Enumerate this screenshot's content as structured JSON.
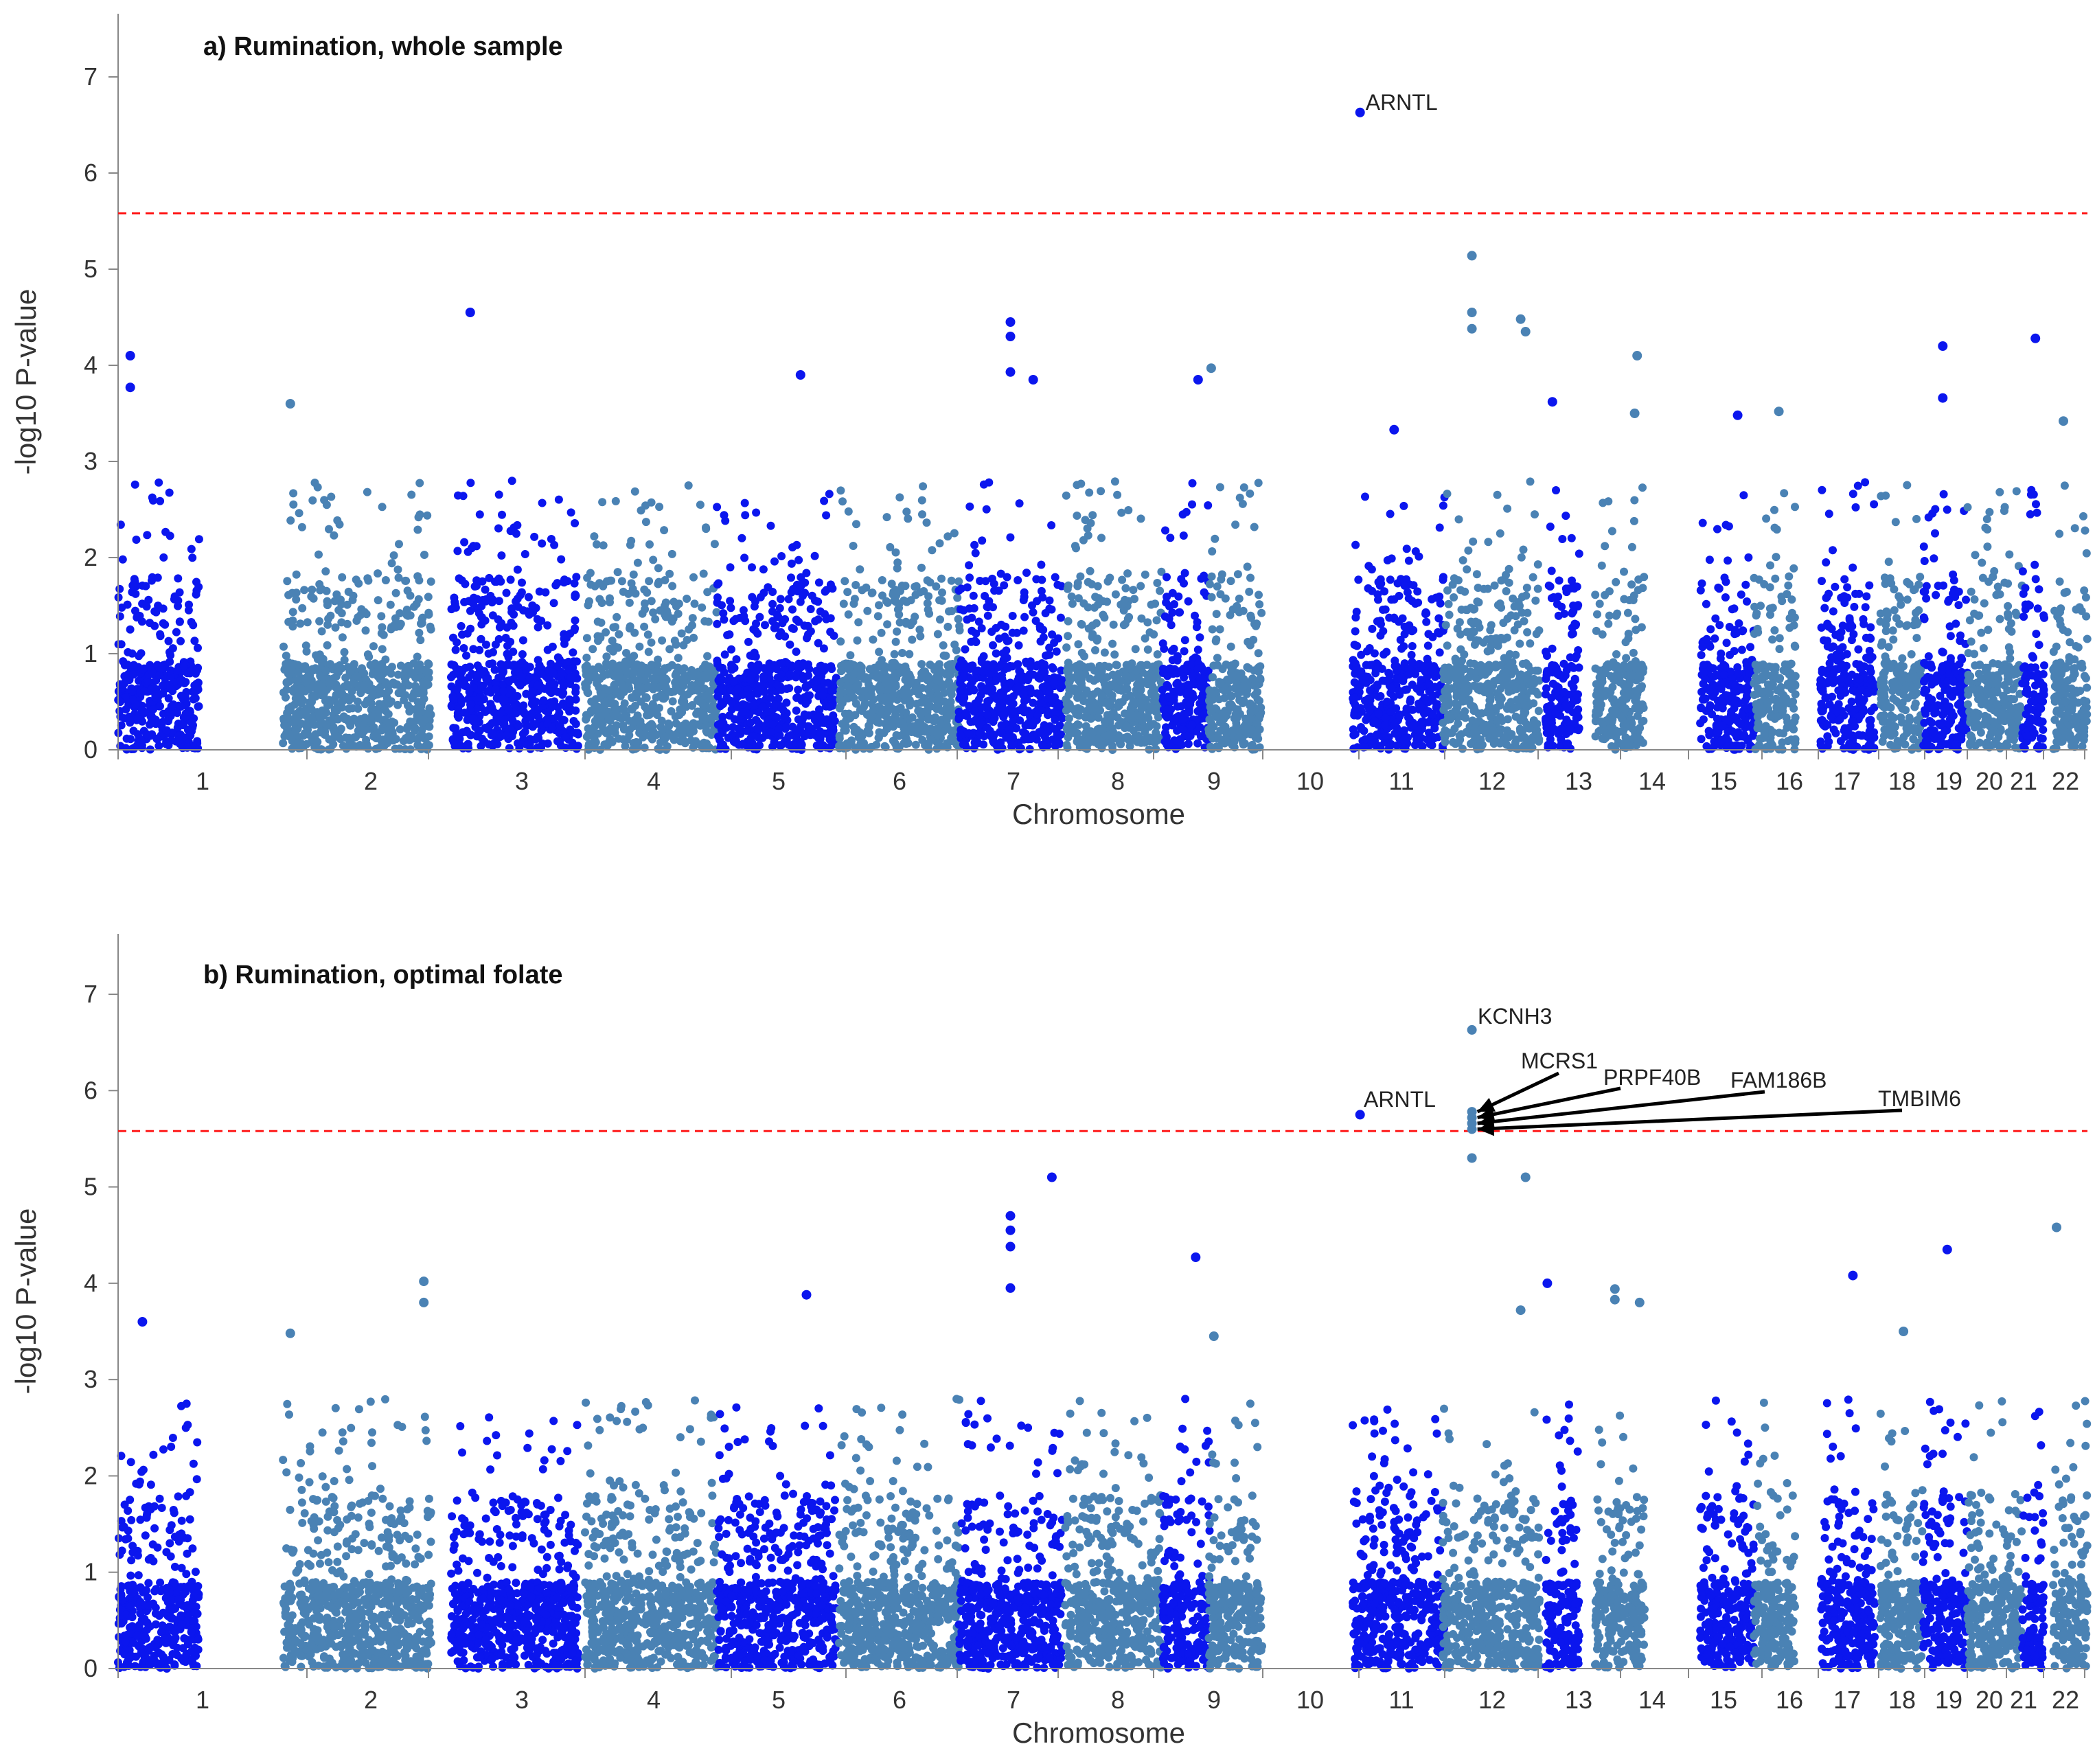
{
  "chart_data": [
    {
      "type": "scatter",
      "subtype": "manhattan",
      "title": "a) Rumination, whole sample",
      "xlabel": "Chromosome",
      "ylabel": "-log10 P-value",
      "ylim": [
        0,
        7.6
      ],
      "yticks": [
        0,
        1,
        2,
        3,
        4,
        5,
        6,
        7
      ],
      "chromosomes": [
        "1",
        "2",
        "3",
        "4",
        "5",
        "6",
        "7",
        "8",
        "9",
        "10",
        "11",
        "12",
        "13",
        "14",
        "15",
        "16",
        "17",
        "18",
        "19",
        "20",
        "21",
        "22"
      ],
      "significance_threshold": 5.58,
      "threshold_line": {
        "style": "dashed",
        "color": "#ff1a1a"
      },
      "series_colors": {
        "odd_chromosomes": "#0b16ee",
        "even_chromosomes": "#4a82b4"
      },
      "grid": false,
      "points": [
        {
          "chr": "11",
          "pos": 0.08,
          "y": 6.63,
          "label": "ARNTL"
        },
        {
          "chr": "12",
          "pos": 0.3,
          "y": 5.14
        },
        {
          "chr": "12",
          "pos": 0.3,
          "y": 4.55
        },
        {
          "chr": "12",
          "pos": 0.3,
          "y": 4.38
        },
        {
          "chr": "12",
          "pos": 0.8,
          "y": 4.48
        },
        {
          "chr": "12",
          "pos": 0.85,
          "y": 4.35
        },
        {
          "chr": "3",
          "pos": 0.15,
          "y": 4.55
        },
        {
          "chr": "7",
          "pos": 0.5,
          "y": 4.45
        },
        {
          "chr": "7",
          "pos": 0.5,
          "y": 4.3
        },
        {
          "chr": "7",
          "pos": 0.5,
          "y": 3.93
        },
        {
          "chr": "7",
          "pos": 0.72,
          "y": 3.85
        },
        {
          "chr": "1",
          "pos": 0.15,
          "y": 4.1
        },
        {
          "chr": "1",
          "pos": 0.15,
          "y": 3.77
        },
        {
          "chr": "5",
          "pos": 0.7,
          "y": 3.9
        },
        {
          "chr": "10",
          "pos": 0.05,
          "y": 3.97
        },
        {
          "chr": "9",
          "pos": 0.75,
          "y": 3.85
        },
        {
          "chr": "14",
          "pos": 0.85,
          "y": 4.1
        },
        {
          "chr": "19",
          "pos": 0.45,
          "y": 4.2
        },
        {
          "chr": "19",
          "pos": 0.45,
          "y": 3.66
        },
        {
          "chr": "21",
          "pos": 0.6,
          "y": 4.28
        },
        {
          "chr": "2",
          "pos": 0.05,
          "y": 3.6
        },
        {
          "chr": "13",
          "pos": 0.2,
          "y": 3.62
        },
        {
          "chr": "16",
          "pos": 0.6,
          "y": 3.52
        },
        {
          "chr": "15",
          "pos": 0.7,
          "y": 3.48
        },
        {
          "chr": "14",
          "pos": 0.8,
          "y": 3.5
        },
        {
          "chr": "11",
          "pos": 0.45,
          "y": 3.33
        },
        {
          "chr": "22",
          "pos": 0.3,
          "y": 3.42
        }
      ]
    },
    {
      "type": "scatter",
      "subtype": "manhattan",
      "title": "b) Rumination, optimal folate",
      "xlabel": "Chromosome",
      "ylabel": "-log10 P-value",
      "ylim": [
        0,
        7.6
      ],
      "yticks": [
        0,
        1,
        2,
        3,
        4,
        5,
        6,
        7
      ],
      "chromosomes": [
        "1",
        "2",
        "3",
        "4",
        "5",
        "6",
        "7",
        "8",
        "9",
        "10",
        "11",
        "12",
        "13",
        "14",
        "15",
        "16",
        "17",
        "18",
        "19",
        "20",
        "21",
        "22"
      ],
      "significance_threshold": 5.58,
      "threshold_line": {
        "style": "dashed",
        "color": "#ff1a1a"
      },
      "series_colors": {
        "odd_chromosomes": "#0b16ee",
        "even_chromosomes": "#4a82b4"
      },
      "grid": false,
      "points": [
        {
          "chr": "12",
          "pos": 0.3,
          "y": 6.63,
          "label": "KCNH3"
        },
        {
          "chr": "11",
          "pos": 0.08,
          "y": 5.75,
          "label": "ARNTL"
        },
        {
          "chr": "12",
          "pos": 0.3,
          "y": 5.78,
          "label": "MCRS1"
        },
        {
          "chr": "12",
          "pos": 0.3,
          "y": 5.72,
          "label": "PRPF40B"
        },
        {
          "chr": "12",
          "pos": 0.3,
          "y": 5.66,
          "label": "FAM186B"
        },
        {
          "chr": "12",
          "pos": 0.3,
          "y": 5.6,
          "label": "TMBIM6"
        },
        {
          "chr": "12",
          "pos": 0.3,
          "y": 5.3
        },
        {
          "chr": "12",
          "pos": 0.85,
          "y": 5.1
        },
        {
          "chr": "7",
          "pos": 0.9,
          "y": 5.1
        },
        {
          "chr": "7",
          "pos": 0.5,
          "y": 4.7
        },
        {
          "chr": "7",
          "pos": 0.5,
          "y": 4.55
        },
        {
          "chr": "7",
          "pos": 0.5,
          "y": 4.38
        },
        {
          "chr": "7",
          "pos": 0.5,
          "y": 3.95
        },
        {
          "chr": "22",
          "pos": 0.1,
          "y": 4.58
        },
        {
          "chr": "19",
          "pos": 0.55,
          "y": 4.35
        },
        {
          "chr": "9",
          "pos": 0.7,
          "y": 4.27
        },
        {
          "chr": "17",
          "pos": 0.6,
          "y": 4.08
        },
        {
          "chr": "2",
          "pos": 0.95,
          "y": 4.02
        },
        {
          "chr": "2",
          "pos": 0.95,
          "y": 3.8
        },
        {
          "chr": "13",
          "pos": 0.05,
          "y": 4.0
        },
        {
          "chr": "14",
          "pos": 0.4,
          "y": 3.94
        },
        {
          "chr": "14",
          "pos": 0.4,
          "y": 3.83
        },
        {
          "chr": "5",
          "pos": 0.75,
          "y": 3.88
        },
        {
          "chr": "14",
          "pos": 0.9,
          "y": 3.8
        },
        {
          "chr": "12",
          "pos": 0.8,
          "y": 3.72
        },
        {
          "chr": "1",
          "pos": 0.3,
          "y": 3.6
        },
        {
          "chr": "18",
          "pos": 0.55,
          "y": 3.5
        },
        {
          "chr": "10",
          "pos": 0.1,
          "y": 3.45
        },
        {
          "chr": "2",
          "pos": 0.05,
          "y": 3.48
        }
      ]
    }
  ]
}
